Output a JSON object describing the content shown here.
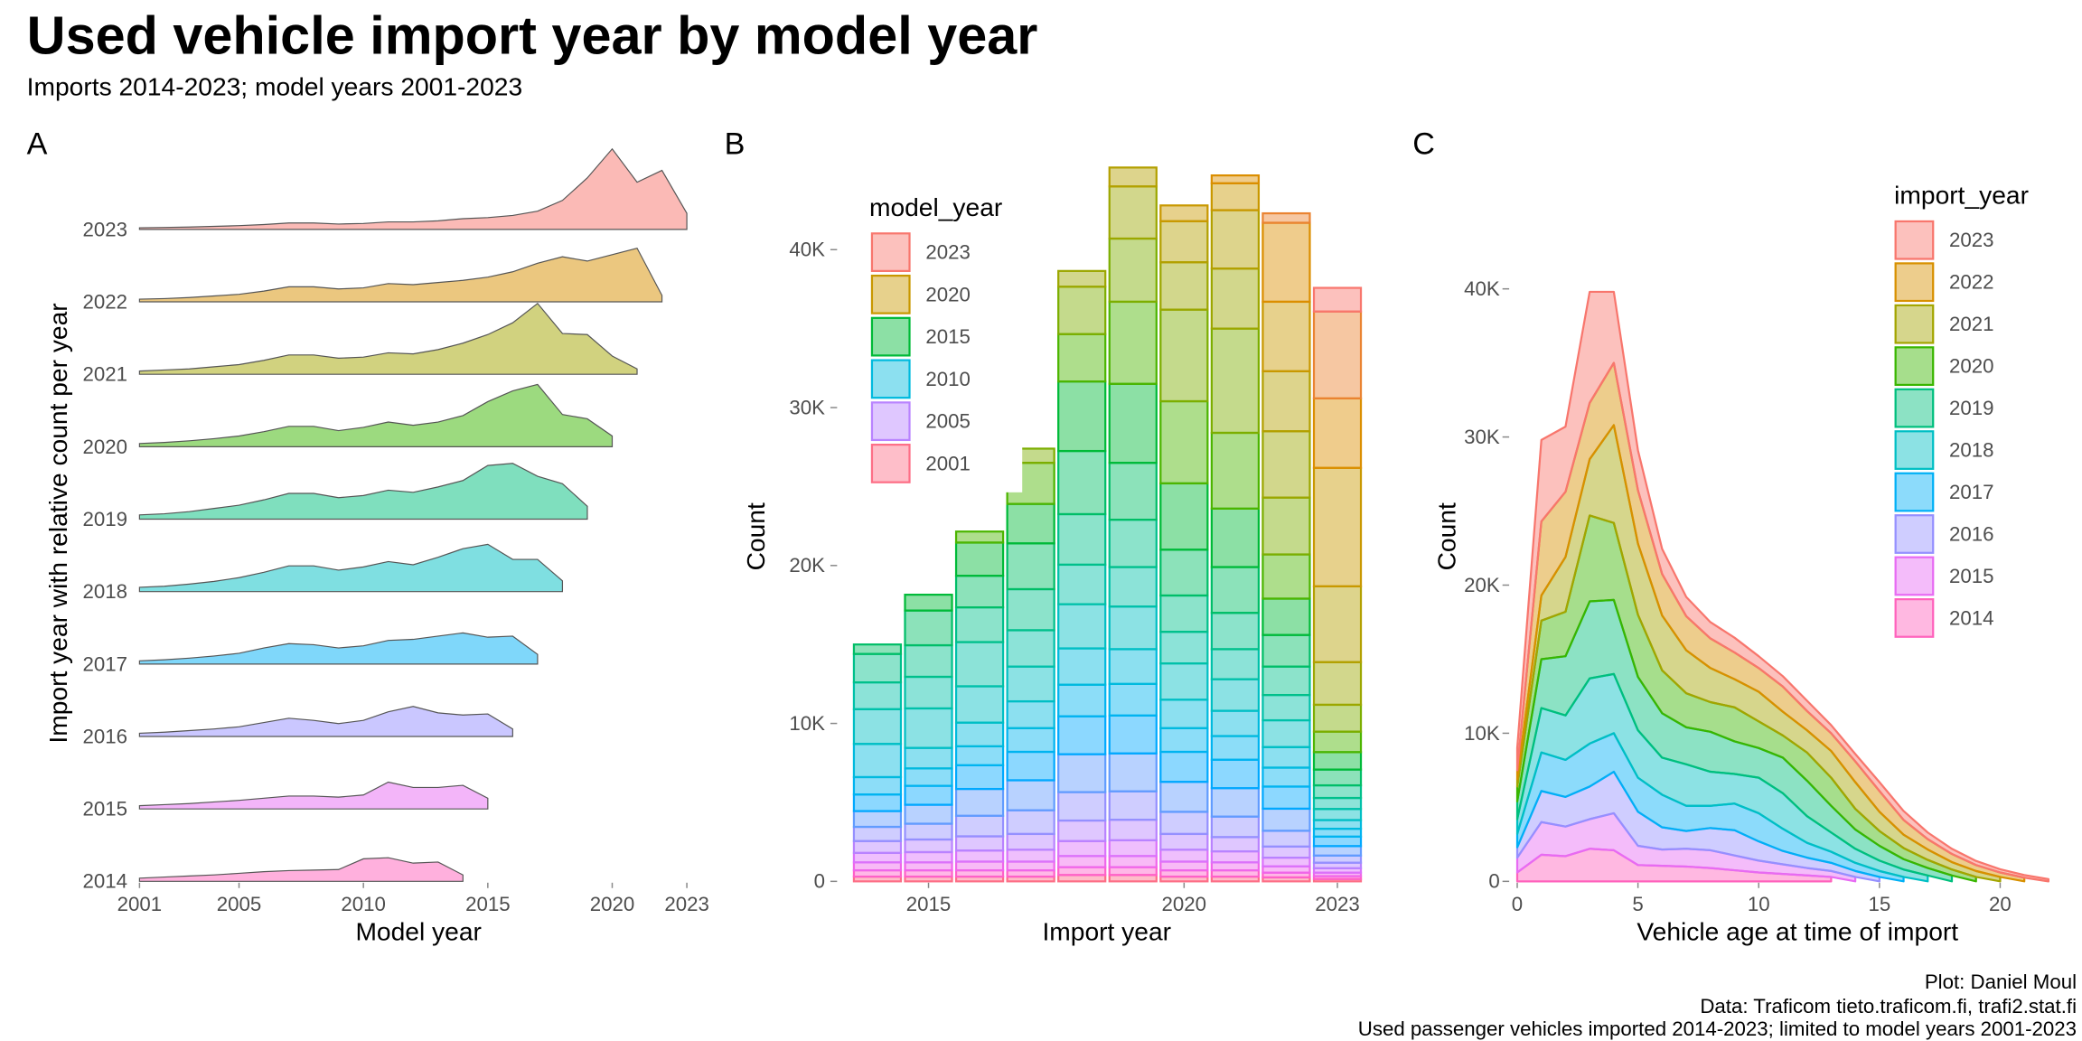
{
  "title": "Used vehicle import year by model year",
  "subtitle": "Imports 2014-2023; model years 2001-2023",
  "caption": [
    "Plot: Daniel Moul",
    "Data: Traficom tieto.traficom.fi, trafi2.stat.fi",
    "Used passenger vehicles imported 2014-2023; limited to model years 2001-2023"
  ],
  "data": {
    "import_years": [
      2014,
      2015,
      2016,
      2017,
      2018,
      2019,
      2020,
      2021,
      2022,
      2023
    ],
    "import_year_colors": [
      "#FF62BC",
      "#E76BF3",
      "#9590FF",
      "#00B0F6",
      "#00BFC4",
      "#00BF7D",
      "#39B600",
      "#A3A500",
      "#D89000",
      "#F8766D"
    ],
    "model_years": [
      2001,
      2002,
      2003,
      2004,
      2005,
      2006,
      2007,
      2008,
      2009,
      2010,
      2011,
      2012,
      2013,
      2014,
      2015,
      2016,
      2017,
      2018,
      2019,
      2020,
      2021,
      2022,
      2023
    ],
    "model_year_colors": [
      "#FD6F87",
      "#FF61C9",
      "#F066EA",
      "#DB72FB",
      "#B983FF",
      "#9590FF",
      "#619CFF",
      "#00A9FF",
      "#00B4F0",
      "#00BADE",
      "#00BFC4",
      "#00C1A9",
      "#00C08B",
      "#00BE67",
      "#00BA38",
      "#4CB500",
      "#7CAE00",
      "#9CA700",
      "#B3A000",
      "#C99800",
      "#DB8E00",
      "#EA8331",
      "#F8766D"
    ],
    "counts": [
      [
        300,
        400,
        500,
        600,
        750,
        900,
        1000,
        1050,
        1100,
        2100,
        2200,
        1700,
        1800,
        600
      ],
      [
        300,
        400,
        500,
        650,
        800,
        1000,
        1200,
        1200,
        1100,
        1300,
        2500,
        2000,
        2000,
        2200,
        1000
      ],
      [
        300,
        400,
        550,
        700,
        900,
        1300,
        1700,
        1500,
        1200,
        1500,
        2300,
        2800,
        2200,
        2000,
        2100,
        700
      ],
      [
        300,
        400,
        550,
        750,
        1000,
        1500,
        1900,
        1800,
        1500,
        1700,
        2200,
        2300,
        2600,
        2900,
        2500,
        2600,
        900
      ],
      [
        400,
        500,
        700,
        950,
        1300,
        1800,
        2400,
        2400,
        2000,
        2300,
        2800,
        2500,
        3200,
        4000,
        4400,
        3000,
        3000,
        1000
      ],
      [
        400,
        500,
        700,
        1000,
        1300,
        1800,
        2400,
        2400,
        2000,
        2200,
        2700,
        2500,
        3000,
        3600,
        5000,
        5200,
        4000,
        3300,
        1200
      ],
      [
        300,
        400,
        550,
        750,
        1000,
        1400,
        1900,
        1900,
        1500,
        1800,
        2300,
        2000,
        2300,
        2900,
        4200,
        5200,
        5800,
        3000,
        2600,
        1000
      ],
      [
        300,
        400,
        500,
        700,
        900,
        1300,
        1800,
        1800,
        1500,
        1600,
        2000,
        1900,
        2300,
        2900,
        3700,
        4800,
        6600,
        3800,
        3700,
        1700,
        500
      ],
      [
        250,
        300,
        400,
        550,
        700,
        1000,
        1400,
        1400,
        1200,
        1300,
        1700,
        1600,
        1800,
        2000,
        2300,
        2800,
        3600,
        4200,
        3800,
        4400,
        5000,
        600
      ],
      [
        150,
        180,
        220,
        280,
        350,
        450,
        600,
        600,
        500,
        550,
        700,
        700,
        800,
        1000,
        1100,
        1300,
        1700,
        2700,
        4800,
        7500,
        4400,
        5500,
        1500
      ]
    ]
  },
  "chart_data": [
    {
      "type": "ridgeline",
      "panel": "A",
      "xlabel": "Model year",
      "ylabel": "Import year with relative count per year",
      "xlim": [
        2001,
        2023
      ],
      "xticks": [
        2001,
        2005,
        2010,
        2015,
        2020,
        2023
      ]
    },
    {
      "type": "stacked_bar",
      "panel": "B",
      "xlabel": "Import year",
      "ylabel": "Count",
      "xlim": [
        2013.5,
        2023.5
      ],
      "xticks": [
        2015,
        2020,
        2023
      ],
      "ylim": [
        0,
        44000
      ],
      "yticks": [
        0,
        {
          "value": 10000,
          "label": "10K"
        },
        {
          "value": 20000,
          "label": "20K"
        },
        {
          "value": 30000,
          "label": "30K"
        },
        {
          "value": 40000,
          "label": "40K"
        }
      ],
      "legend_title": "model_year",
      "legend_breaks": [
        2023,
        2020,
        2015,
        2010,
        2005,
        2001
      ]
    },
    {
      "type": "stacked_area",
      "panel": "C",
      "xlabel": "Vehicle age at time of import",
      "ylabel": "Count",
      "xlim": [
        0,
        22
      ],
      "xticks": [
        0,
        5,
        10,
        15,
        20
      ],
      "ylim": [
        0,
        48000
      ],
      "yticks": [
        0,
        {
          "value": 10000,
          "label": "10K"
        },
        {
          "value": 20000,
          "label": "20K"
        },
        {
          "value": 30000,
          "label": "30K"
        },
        {
          "value": 40000,
          "label": "40K"
        }
      ],
      "legend_title": "import_year"
    }
  ]
}
